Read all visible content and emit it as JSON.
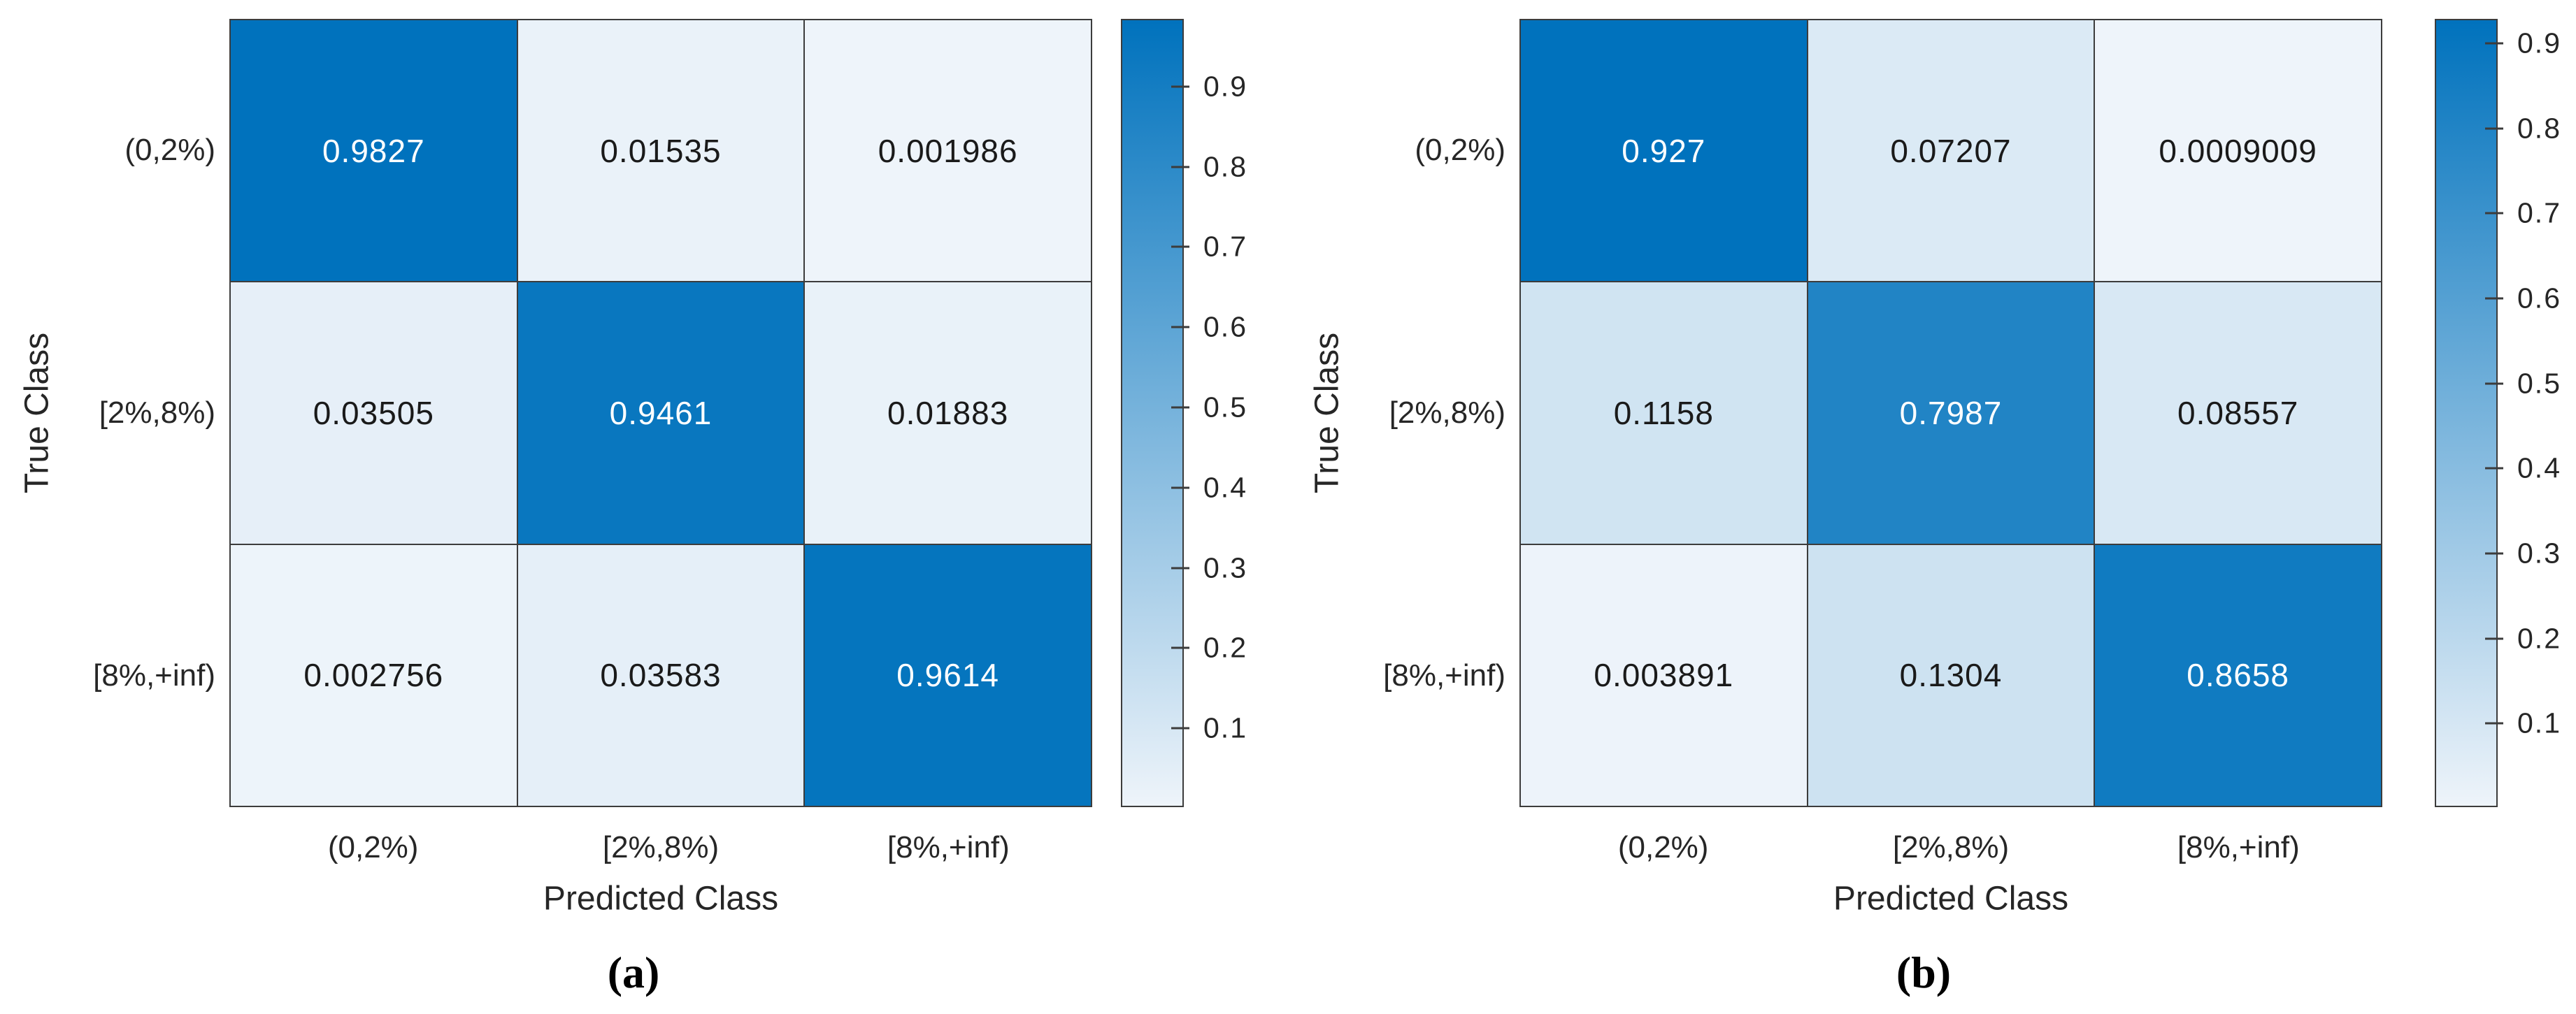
{
  "figure": {
    "description_left_caption": "(a)",
    "description_right_caption": "(b)"
  },
  "colors": {
    "cmap_low": "#EEF4FA",
    "cmap_high": "#0072BD",
    "grid_line": "#3c3c3c",
    "cell_text_dark": "#1a1a1a",
    "cell_text_light": "#ffffff",
    "axis_text": "#262626"
  },
  "chart_data": [
    {
      "type": "heatmap",
      "panel_label": "(a)",
      "xlabel": "Predicted Class",
      "ylabel": "True Class",
      "categories": [
        "(0,2%)",
        "[2%,8%)",
        "[8%,+inf)"
      ],
      "rows": [
        [
          0.9827,
          0.01535,
          0.001986
        ],
        [
          0.03505,
          0.9461,
          0.01883
        ],
        [
          0.002756,
          0.03583,
          0.9614
        ]
      ],
      "cell_labels": [
        [
          "0.9827",
          "0.01535",
          "0.001986"
        ],
        [
          "0.03505",
          "0.9461",
          "0.01883"
        ],
        [
          "0.002756",
          "0.03583",
          "0.9614"
        ]
      ],
      "colorbar": {
        "vmin": 0,
        "vmax": 0.9827,
        "tick_values": [
          0.1,
          0.2,
          0.3,
          0.4,
          0.5,
          0.6,
          0.7,
          0.8,
          0.9
        ],
        "tick_labels": [
          "0.1",
          "0.2",
          "0.3",
          "0.4",
          "0.5",
          "0.6",
          "0.7",
          "0.8",
          "0.9"
        ]
      },
      "grid": true,
      "legend": "colorbar-right"
    },
    {
      "type": "heatmap",
      "panel_label": "(b)",
      "xlabel": "Predicted Class",
      "ylabel": "True Class",
      "categories": [
        "(0,2%)",
        "[2%,8%)",
        "[8%,+inf)"
      ],
      "rows": [
        [
          0.927,
          0.07207,
          0.0009009
        ],
        [
          0.1158,
          0.7987,
          0.08557
        ],
        [
          0.003891,
          0.1304,
          0.8658
        ]
      ],
      "cell_labels": [
        [
          "0.927",
          "0.07207",
          "0.0009009"
        ],
        [
          "0.1158",
          "0.7987",
          "0.08557"
        ],
        [
          "0.003891",
          "0.1304",
          "0.8658"
        ]
      ],
      "colorbar": {
        "vmin": 0,
        "vmax": 0.927,
        "tick_values": [
          0.1,
          0.2,
          0.3,
          0.4,
          0.5,
          0.6,
          0.7,
          0.8,
          0.9
        ],
        "tick_labels": [
          "0.1",
          "0.2",
          "0.3",
          "0.4",
          "0.5",
          "0.6",
          "0.7",
          "0.8",
          "0.9"
        ]
      },
      "grid": true,
      "legend": "colorbar-right"
    }
  ]
}
